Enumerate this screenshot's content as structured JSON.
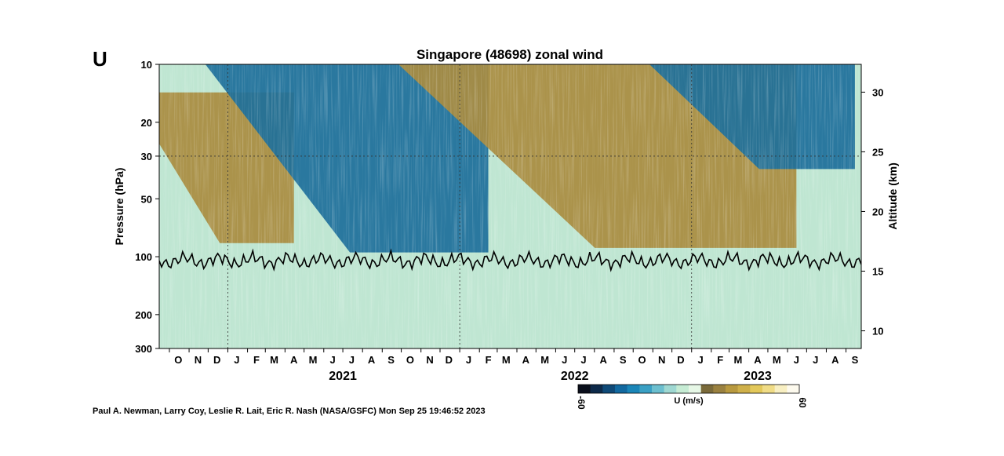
{
  "panel_letter": "U",
  "credit": "Paul A. Newman, Larry Coy, Leslie R. Lait, Eric R. Nash (NASA/GSFC) Mon Sep 25 19:46:52 2023",
  "colorbar": {
    "label": "U (m/s)",
    "min_label": "-60",
    "max_label": "60",
    "min": -60,
    "max": 60,
    "colors": [
      "#0a0f1c",
      "#0d2a4a",
      "#0f4a78",
      "#1269a0",
      "#1a86b8",
      "#3aa0c4",
      "#6cbfcf",
      "#9fd8d2",
      "#c6ecd4",
      "#e6f7e6",
      "#7a6a3a",
      "#9a8140",
      "#b8993f",
      "#cfb04a",
      "#e3c85a",
      "#f0dc86",
      "#f8efc2",
      "#fdfaee"
    ]
  },
  "chart_data": {
    "type": "heatmap",
    "title": "Singapore (48698) zonal wind",
    "ylabel": "Pressure (hPa)",
    "y2label": "Altitude (km)",
    "y_scale": "log",
    "ylim": [
      300,
      10
    ],
    "y_ticks": [
      10,
      20,
      30,
      50,
      100,
      200,
      300
    ],
    "y_tick_labels": [
      "10",
      "20",
      "30",
      "50",
      "100",
      "200",
      "300"
    ],
    "y2_ticks": [
      30,
      25,
      20,
      15,
      10
    ],
    "y2_tick_labels": [
      "30",
      "25",
      "20",
      "15",
      "10"
    ],
    "x_months": [
      "O",
      "N",
      "D",
      "J",
      "F",
      "M",
      "A",
      "M",
      "J",
      "J",
      "A",
      "S",
      "O",
      "N",
      "D",
      "J",
      "F",
      "M",
      "A",
      "M",
      "J",
      "J",
      "A",
      "S",
      "O",
      "N",
      "D",
      "J",
      "F",
      "M",
      "A",
      "M",
      "J",
      "J",
      "A",
      "S"
    ],
    "x_years": [
      "2021",
      "2022",
      "2023"
    ],
    "x_range": [
      "2020-09-15",
      "2023-09-25"
    ],
    "z_label": "U (m/s)",
    "z_range": [
      -60,
      60
    ],
    "qbo_phases": [
      {
        "start": "2020-09",
        "end": "2021-04",
        "sign": "westerly",
        "top_hPa": 14,
        "bottom_hPa": 85
      },
      {
        "start": "2021-01",
        "end": "2022-02",
        "sign": "easterly",
        "top_hPa": 10,
        "bottom_hPa": 95
      },
      {
        "start": "2021-11",
        "end": "2023-06",
        "sign": "westerly",
        "top_hPa": 10,
        "bottom_hPa": 90
      },
      {
        "start": "2022-12",
        "end": "2023-09",
        "sign": "easterly",
        "top_hPa": 10,
        "bottom_hPa": 35
      }
    ],
    "overlay": {
      "name": "tropopause",
      "unit": "hPa",
      "approx_range": [
        95,
        120
      ],
      "mean": 105
    },
    "grid": "dotted reference lines at 30 hPa and year boundaries"
  }
}
